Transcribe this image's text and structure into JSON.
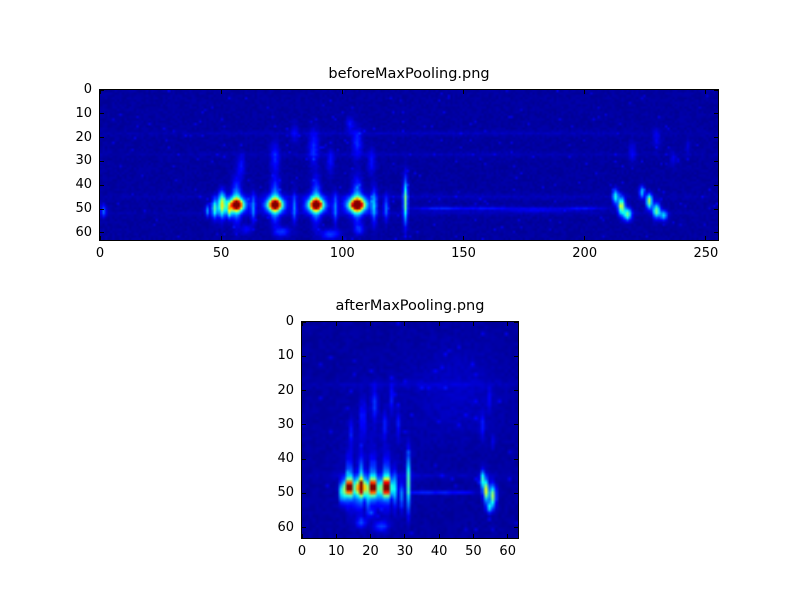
{
  "window": {
    "background": "#ffffff",
    "text_color": "#000000"
  },
  "chart_data": [
    {
      "type": "heatmap",
      "title": "beforeMaxPooling.png",
      "colormap": "jet",
      "xlim": [
        0,
        255
      ],
      "ylim": [
        63,
        0
      ],
      "xticks": [
        0,
        50,
        100,
        150,
        200,
        250
      ],
      "yticks": [
        0,
        10,
        20,
        30,
        40,
        50,
        60
      ],
      "grid_cols": 256,
      "grid_rows": 64,
      "base_value": 0.02,
      "blobs": [
        [
          56,
          48.5,
          2.5,
          2,
          0.75
        ],
        [
          56,
          48.5,
          4.5,
          3.5,
          0.35
        ],
        [
          56,
          47,
          1.8,
          9,
          0.25
        ],
        [
          72,
          48.5,
          2.5,
          2,
          0.75
        ],
        [
          72,
          48.5,
          4.5,
          3.5,
          0.35
        ],
        [
          72,
          47,
          1.8,
          9,
          0.25
        ],
        [
          89,
          48.5,
          2.5,
          2,
          0.78
        ],
        [
          89,
          48.5,
          4.5,
          3.5,
          0.35
        ],
        [
          89,
          47,
          1.8,
          9,
          0.25
        ],
        [
          106,
          48.5,
          2.8,
          2.2,
          0.8
        ],
        [
          106,
          48.5,
          5,
          3.5,
          0.35
        ],
        [
          106,
          47,
          2,
          9,
          0.25
        ],
        [
          47,
          50,
          1.2,
          4,
          0.4
        ],
        [
          50,
          48.5,
          1.4,
          5,
          0.55
        ],
        [
          53,
          51,
          1,
          3,
          0.4
        ],
        [
          44,
          51,
          0.8,
          2.5,
          0.25
        ],
        [
          63,
          50,
          1,
          6,
          0.2
        ],
        [
          80,
          50,
          1,
          6,
          0.2
        ],
        [
          97,
          50,
          1,
          6,
          0.2
        ],
        [
          113,
          49,
          1.2,
          7,
          0.25
        ],
        [
          118,
          50,
          1,
          5,
          0.2
        ],
        [
          126,
          47,
          0.9,
          9,
          0.45
        ],
        [
          58,
          32,
          1.5,
          5,
          0.1
        ],
        [
          72,
          28,
          1.8,
          6,
          0.12
        ],
        [
          88,
          24,
          2,
          7,
          0.13
        ],
        [
          95,
          30,
          1.5,
          5,
          0.1
        ],
        [
          106,
          22,
          2,
          6,
          0.13
        ],
        [
          112,
          30,
          1.5,
          5,
          0.1
        ],
        [
          103,
          14,
          1.5,
          3,
          0.1
        ],
        [
          80,
          18,
          1.5,
          4,
          0.08
        ],
        [
          75,
          60,
          3,
          2,
          0.15
        ],
        [
          95,
          61,
          4,
          2,
          0.15
        ],
        [
          107,
          59,
          2,
          2,
          0.12
        ],
        [
          60,
          59,
          2,
          2,
          0.1
        ],
        [
          140,
          50,
          10,
          0.8,
          0.12
        ],
        [
          160,
          50,
          10,
          0.8,
          0.1
        ],
        [
          180,
          50.5,
          12,
          0.8,
          0.1
        ],
        [
          200,
          50,
          8,
          0.8,
          0.1
        ],
        [
          213,
          45,
          1.2,
          3,
          0.35
        ],
        [
          215.5,
          49,
          1.3,
          3.5,
          0.55
        ],
        [
          218,
          52.5,
          1.6,
          2.5,
          0.45
        ],
        [
          224,
          43,
          1,
          2.5,
          0.3
        ],
        [
          227,
          47,
          1.2,
          3,
          0.5
        ],
        [
          230,
          51,
          1.5,
          3,
          0.45
        ],
        [
          233,
          53,
          1.5,
          2,
          0.3
        ],
        [
          220,
          26,
          1.5,
          4,
          0.08
        ],
        [
          230,
          20,
          1.5,
          4,
          0.08
        ],
        [
          237,
          29,
          1.2,
          3,
          0.07
        ],
        [
          243,
          24,
          1,
          3,
          0.06
        ],
        [
          128,
          18,
          120,
          1,
          0.03
        ],
        [
          128,
          27,
          120,
          1,
          0.025
        ],
        [
          128,
          45,
          120,
          1.2,
          0.03
        ],
        [
          128,
          52,
          120,
          1,
          0.025
        ],
        [
          1,
          51,
          1,
          2.5,
          0.2
        ]
      ]
    },
    {
      "type": "heatmap",
      "title": "afterMaxPooling.png",
      "colormap": "jet",
      "xlim": [
        0,
        63
      ],
      "ylim": [
        63,
        0
      ],
      "xticks": [
        0,
        10,
        20,
        30,
        40,
        50,
        60
      ],
      "yticks": [
        0,
        10,
        20,
        30,
        40,
        50,
        60
      ],
      "grid_cols": 64,
      "grid_rows": 64,
      "base_value": 0.02,
      "blobs": [
        [
          11.5,
          50,
          0.7,
          3,
          0.45
        ],
        [
          13.5,
          48.5,
          1,
          1.8,
          0.75
        ],
        [
          13.5,
          48.5,
          1.8,
          3,
          0.35
        ],
        [
          13.5,
          47,
          0.8,
          7,
          0.28
        ],
        [
          17,
          48.5,
          1,
          1.8,
          0.75
        ],
        [
          17,
          48.5,
          1.8,
          3,
          0.35
        ],
        [
          17,
          47,
          0.8,
          7,
          0.28
        ],
        [
          20.5,
          48.5,
          1,
          1.8,
          0.78
        ],
        [
          20.5,
          48.5,
          1.8,
          3,
          0.35
        ],
        [
          20.5,
          47,
          0.8,
          7,
          0.28
        ],
        [
          24.5,
          48.5,
          1.1,
          2,
          0.8
        ],
        [
          24.5,
          48.5,
          2,
          3,
          0.35
        ],
        [
          24.5,
          47,
          0.9,
          7,
          0.28
        ],
        [
          15.5,
          52,
          0.6,
          4,
          0.2
        ],
        [
          19,
          52,
          0.6,
          4,
          0.2
        ],
        [
          22.5,
          51,
          0.6,
          4,
          0.2
        ],
        [
          27,
          49,
          0.7,
          5,
          0.25
        ],
        [
          29,
          51,
          0.6,
          4,
          0.2
        ],
        [
          31,
          47,
          0.6,
          8,
          0.4
        ],
        [
          14,
          32,
          0.7,
          4,
          0.1
        ],
        [
          17.5,
          28,
          0.8,
          5,
          0.13
        ],
        [
          21,
          24,
          0.9,
          5,
          0.13
        ],
        [
          24,
          30,
          0.7,
          4,
          0.1
        ],
        [
          26,
          22,
          0.7,
          4,
          0.1
        ],
        [
          28,
          30,
          0.6,
          4,
          0.09
        ],
        [
          17,
          59,
          1.5,
          1.5,
          0.15
        ],
        [
          23,
          60,
          2,
          1.5,
          0.15
        ],
        [
          20,
          56,
          1,
          1,
          0.12
        ],
        [
          35,
          50,
          4,
          0.6,
          0.12
        ],
        [
          42,
          50,
          4,
          0.6,
          0.1
        ],
        [
          48,
          50,
          3,
          0.5,
          0.08
        ],
        [
          53,
          46,
          0.7,
          2.5,
          0.35
        ],
        [
          54,
          49.5,
          0.8,
          3,
          0.55
        ],
        [
          56,
          51,
          0.9,
          3,
          0.5
        ],
        [
          55,
          54.5,
          0.8,
          1.5,
          0.3
        ],
        [
          53,
          30,
          0.7,
          3.5,
          0.1
        ],
        [
          55,
          22,
          0.6,
          3,
          0.08
        ],
        [
          56,
          35,
          0.5,
          2,
          0.07
        ],
        [
          32,
          18,
          30,
          1,
          0.03
        ],
        [
          32,
          45,
          30,
          1,
          0.03
        ],
        [
          45,
          20,
          13,
          13,
          0.035
        ],
        [
          20,
          40,
          10,
          20,
          0.02
        ]
      ]
    }
  ]
}
